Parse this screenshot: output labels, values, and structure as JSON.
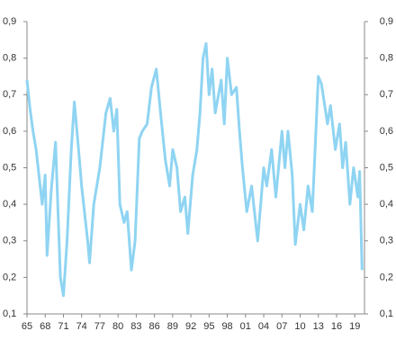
{
  "chart_data": {
    "type": "line",
    "xlim": [
      1965,
      2020.6
    ],
    "xticks": [
      {
        "value": 1965,
        "label": "65"
      },
      {
        "value": 1968,
        "label": "68"
      },
      {
        "value": 1971,
        "label": "71"
      },
      {
        "value": 1974,
        "label": "74"
      },
      {
        "value": 1977,
        "label": "77"
      },
      {
        "value": 1980,
        "label": "80"
      },
      {
        "value": 1983,
        "label": "83"
      },
      {
        "value": 1986,
        "label": "86"
      },
      {
        "value": 1989,
        "label": "89"
      },
      {
        "value": 1992,
        "label": "92"
      },
      {
        "value": 1995,
        "label": "95"
      },
      {
        "value": 1998,
        "label": "98"
      },
      {
        "value": 2001,
        "label": "01"
      },
      {
        "value": 2004,
        "label": "04"
      },
      {
        "value": 2007,
        "label": "07"
      },
      {
        "value": 2010,
        "label": "10"
      },
      {
        "value": 2013,
        "label": "13"
      },
      {
        "value": 2016,
        "label": "16"
      },
      {
        "value": 2019,
        "label": "19"
      }
    ],
    "ylim": [
      0.1,
      0.9
    ],
    "yticks": [
      {
        "value": 0.1,
        "label": "0,1"
      },
      {
        "value": 0.2,
        "label": "0,2"
      },
      {
        "value": 0.3,
        "label": "0,3"
      },
      {
        "value": 0.4,
        "label": "0,4"
      },
      {
        "value": 0.5,
        "label": "0,5"
      },
      {
        "value": 0.6,
        "label": "0,6"
      },
      {
        "value": 0.7,
        "label": "0,7"
      },
      {
        "value": 0.8,
        "label": "0,8"
      },
      {
        "value": 0.9,
        "label": "0,9"
      }
    ],
    "y2lim": [
      0.1,
      0.9
    ],
    "y2ticks": [
      {
        "value": 0.1,
        "label": "0,1"
      },
      {
        "value": 0.2,
        "label": "0,2"
      },
      {
        "value": 0.3,
        "label": "0,3"
      },
      {
        "value": 0.4,
        "label": "0,4"
      },
      {
        "value": 0.5,
        "label": "0,5"
      },
      {
        "value": 0.6,
        "label": "0,6"
      },
      {
        "value": 0.7,
        "label": "0,7"
      },
      {
        "value": 0.8,
        "label": "0,8"
      },
      {
        "value": 0.9,
        "label": "0,9"
      }
    ],
    "x": [
      1965,
      1965.5,
      1966,
      1966.5,
      1967.5,
      1968,
      1968.3,
      1969,
      1969.7,
      1970.5,
      1971,
      1971.6,
      1972.3,
      1972.8,
      1973.5,
      1974,
      1975,
      1975.3,
      1976,
      1977,
      1978,
      1978.7,
      1979.3,
      1979.8,
      1980.3,
      1981,
      1981.5,
      1982.2,
      1982.8,
      1983.5,
      1984,
      1984.8,
      1985.5,
      1986.3,
      1987,
      1987.8,
      1988.5,
      1989,
      1989.7,
      1990.3,
      1991,
      1991.5,
      1992.3,
      1993,
      1993.5,
      1994,
      1994.5,
      1995,
      1995.5,
      1996,
      1997,
      1997.5,
      1998,
      1998.7,
      1999.5,
      2000,
      2000.5,
      2001.2,
      2002,
      2003,
      2004,
      2004.5,
      2005.3,
      2006,
      2007,
      2007.5,
      2008,
      2008.7,
      2009.2,
      2010,
      2010.6,
      2011.3,
      2012,
      2012.6,
      2013,
      2013.5,
      2014.5,
      2015,
      2015.8,
      2016.5,
      2017,
      2017.5,
      2018.2,
      2018.8,
      2019.5,
      2019.8,
      2020.2
    ],
    "series": [
      {
        "color": "#8fd4f2",
        "values": [
          0.74,
          0.66,
          0.6,
          0.55,
          0.4,
          0.48,
          0.26,
          0.44,
          0.57,
          0.2,
          0.15,
          0.3,
          0.55,
          0.68,
          0.55,
          0.45,
          0.3,
          0.24,
          0.4,
          0.5,
          0.65,
          0.69,
          0.6,
          0.66,
          0.4,
          0.35,
          0.38,
          0.22,
          0.3,
          0.58,
          0.6,
          0.62,
          0.72,
          0.77,
          0.65,
          0.52,
          0.45,
          0.55,
          0.5,
          0.38,
          0.42,
          0.32,
          0.48,
          0.55,
          0.65,
          0.8,
          0.84,
          0.7,
          0.77,
          0.65,
          0.74,
          0.62,
          0.8,
          0.7,
          0.72,
          0.6,
          0.5,
          0.38,
          0.45,
          0.3,
          0.5,
          0.45,
          0.55,
          0.42,
          0.6,
          0.5,
          0.6,
          0.48,
          0.29,
          0.4,
          0.33,
          0.45,
          0.38,
          0.6,
          0.75,
          0.73,
          0.62,
          0.67,
          0.55,
          0.62,
          0.5,
          0.57,
          0.4,
          0.5,
          0.42,
          0.49,
          0.22
        ]
      }
    ]
  }
}
